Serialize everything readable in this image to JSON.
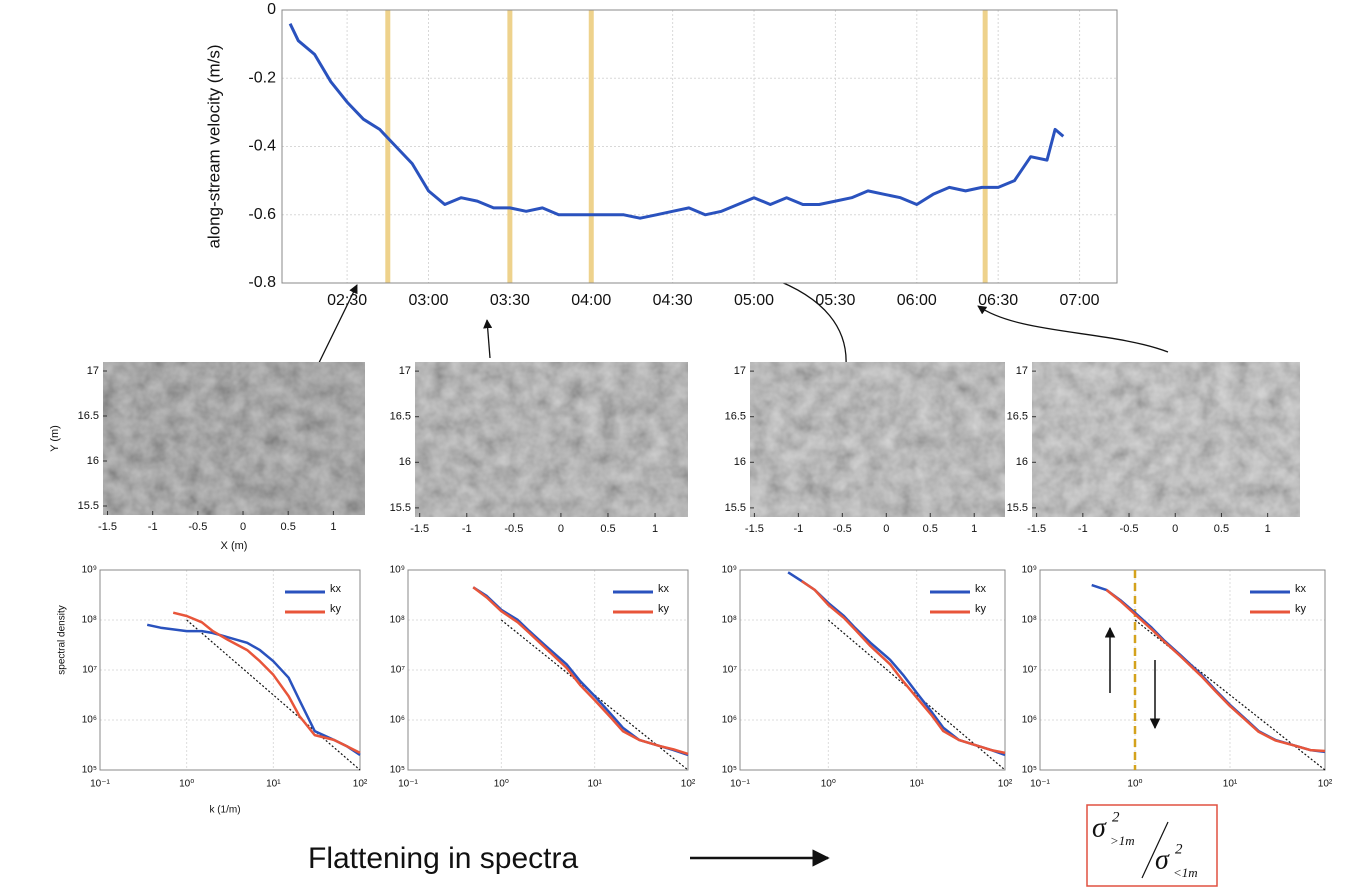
{
  "chart_data": [
    {
      "type": "line",
      "ylabel": "along-stream velocity (m/s)",
      "x": [
        2.15,
        2.2,
        2.3,
        2.4,
        2.5,
        2.6,
        2.7,
        2.8,
        2.9,
        3.0,
        3.1,
        3.2,
        3.3,
        3.4,
        3.5,
        3.6,
        3.7,
        3.8,
        3.9,
        4.0,
        4.1,
        4.2,
        4.3,
        4.4,
        4.5,
        4.6,
        4.7,
        4.8,
        4.9,
        5.0,
        5.1,
        5.2,
        5.3,
        5.4,
        5.5,
        5.6,
        5.7,
        5.8,
        5.9,
        6.0,
        6.1,
        6.2,
        6.3,
        6.4,
        6.5,
        6.6,
        6.7,
        6.8,
        6.85,
        6.9
      ],
      "series": [
        {
          "color": "#2a52be",
          "values": [
            -0.04,
            -0.09,
            -0.13,
            -0.21,
            -0.27,
            -0.32,
            -0.35,
            -0.4,
            -0.45,
            -0.53,
            -0.57,
            -0.55,
            -0.56,
            -0.58,
            -0.58,
            -0.59,
            -0.58,
            -0.6,
            -0.6,
            -0.6,
            -0.6,
            -0.6,
            -0.61,
            -0.6,
            -0.59,
            -0.58,
            -0.6,
            -0.59,
            -0.57,
            -0.55,
            -0.57,
            -0.55,
            -0.57,
            -0.57,
            -0.56,
            -0.55,
            -0.53,
            -0.54,
            -0.55,
            -0.57,
            -0.54,
            -0.52,
            -0.53,
            -0.52,
            -0.52,
            -0.5,
            -0.43,
            -0.44,
            -0.35,
            -0.37
          ]
        }
      ],
      "xlim": [
        2.1,
        7.23
      ],
      "xticks": [
        {
          "value": 2.5,
          "label": "02:30"
        },
        {
          "value": 3.0,
          "label": "03:00"
        },
        {
          "value": 3.5,
          "label": "03:30"
        },
        {
          "value": 4.0,
          "label": "04:00"
        },
        {
          "value": 4.5,
          "label": "04:30"
        },
        {
          "value": 5.0,
          "label": "05:00"
        },
        {
          "value": 5.5,
          "label": "05:30"
        },
        {
          "value": 6.0,
          "label": "06:00"
        },
        {
          "value": 6.5,
          "label": "06:30"
        },
        {
          "value": 7.0,
          "label": "07:00"
        }
      ],
      "ylim": [
        -0.8,
        0
      ],
      "yticks": [
        -0.8,
        -0.6,
        -0.4,
        -0.2,
        0
      ],
      "grid": true,
      "highlight_x": [
        2.75,
        3.5,
        4.0,
        6.42
      ],
      "highlight_color": "#eed28c"
    },
    {
      "type": "image",
      "xlabel": "X (m)",
      "ylabel": "Y (m)",
      "xlim": [
        -1.55,
        1.35
      ],
      "ylim": [
        15.4,
        17.1
      ],
      "xticks": [
        -1.5,
        -1,
        -0.5,
        0,
        0.5,
        1
      ],
      "yticks": [
        15.5,
        16,
        16.5,
        17
      ],
      "tone": "#8c8c8c"
    },
    {
      "type": "image",
      "xlim": [
        -1.55,
        1.35
      ],
      "ylim": [
        15.4,
        17.1
      ],
      "xticks": [
        -1.5,
        -1,
        -0.5,
        0,
        0.5,
        1
      ],
      "yticks": [
        15.5,
        16,
        16.5,
        17
      ],
      "tone": "#a8a8a8"
    },
    {
      "type": "image",
      "xlim": [
        -1.55,
        1.35
      ],
      "ylim": [
        15.4,
        17.1
      ],
      "xticks": [
        -1.5,
        -1,
        -0.5,
        0,
        0.5,
        1
      ],
      "yticks": [
        15.5,
        16,
        16.5,
        17
      ],
      "tone": "#b4b4b4"
    },
    {
      "type": "image",
      "xlim": [
        -1.55,
        1.35
      ],
      "ylim": [
        15.4,
        17.1
      ],
      "xticks": [
        -1.5,
        -1,
        -0.5,
        0,
        0.5,
        1
      ],
      "yticks": [
        15.5,
        16,
        16.5,
        17
      ],
      "tone": "#bdbdbd"
    },
    {
      "type": "loglog",
      "ylabel": "spectral density",
      "xlabel": "k (1/m)",
      "x": [
        0.35,
        0.5,
        0.7,
        1,
        1.5,
        2,
        3,
        5,
        7,
        10,
        15,
        20,
        30,
        50,
        70,
        100
      ],
      "series": [
        {
          "name": "kx",
          "color": "#2a52be",
          "values": [
            80000000,
            70000000,
            65000000,
            60000000,
            60000000,
            55000000,
            45000000,
            35000000,
            25000000,
            15000000,
            7000000,
            2500000,
            600000,
            400000,
            300000,
            200000
          ]
        },
        {
          "name": "ky",
          "color": "#e8553a",
          "values": [
            null,
            null,
            140000000,
            120000000,
            90000000,
            60000000,
            40000000,
            25000000,
            15000000,
            8000000,
            3000000,
            1200000,
            500000,
            400000,
            300000,
            220000
          ]
        }
      ],
      "reference": {
        "x": [
          1,
          100
        ],
        "values": [
          100000000,
          100000
        ]
      },
      "xlim": [
        0.1,
        100
      ],
      "ylim": [
        100000,
        1000000000
      ],
      "xticks": [
        {
          "value": 0.1,
          "label": "10⁻¹"
        },
        {
          "value": 1,
          "label": "10⁰"
        },
        {
          "value": 10,
          "label": "10¹"
        },
        {
          "value": 100,
          "label": "10²"
        }
      ],
      "yticks": [
        {
          "value": 100000,
          "label": "10⁵"
        },
        {
          "value": 1000000,
          "label": "10⁶"
        },
        {
          "value": 10000000,
          "label": "10⁷"
        },
        {
          "value": 100000000,
          "label": "10⁸"
        },
        {
          "value": 1000000000,
          "label": "10⁹"
        }
      ],
      "log_scale": true,
      "grid": true,
      "legend": "upper right"
    },
    {
      "type": "loglog",
      "x": [
        0.35,
        0.5,
        0.7,
        1,
        1.5,
        2,
        3,
        5,
        7,
        10,
        15,
        20,
        30,
        50,
        70,
        100
      ],
      "series": [
        {
          "name": "kx",
          "color": "#2a52be",
          "values": [
            null,
            450000000,
            300000000,
            160000000,
            100000000,
            60000000,
            30000000,
            13000000,
            6000000,
            3000000,
            1300000,
            700000,
            400000,
            300000,
            250000,
            200000
          ]
        },
        {
          "name": "ky",
          "color": "#e8553a",
          "values": [
            null,
            450000000,
            280000000,
            150000000,
            90000000,
            55000000,
            27000000,
            11000000,
            5000000,
            2500000,
            1100000,
            600000,
            400000,
            300000,
            260000,
            210000
          ]
        }
      ],
      "reference": {
        "x": [
          1,
          100
        ],
        "values": [
          100000000,
          100000
        ]
      },
      "xlim": [
        0.1,
        100
      ],
      "ylim": [
        100000,
        1000000000
      ],
      "xticks": [
        {
          "value": 0.1,
          "label": "10⁻¹"
        },
        {
          "value": 1,
          "label": "10⁰"
        },
        {
          "value": 10,
          "label": "10¹"
        },
        {
          "value": 100,
          "label": "10²"
        }
      ],
      "yticks": [
        {
          "value": 100000,
          "label": "10⁵"
        },
        {
          "value": 1000000,
          "label": "10⁶"
        },
        {
          "value": 10000000,
          "label": "10⁷"
        },
        {
          "value": 100000000,
          "label": "10⁸"
        },
        {
          "value": 1000000000,
          "label": "10⁹"
        }
      ],
      "log_scale": true,
      "grid": true,
      "legend": "upper right"
    },
    {
      "type": "loglog",
      "x": [
        0.35,
        0.5,
        0.7,
        1,
        1.5,
        2,
        3,
        5,
        7,
        10,
        15,
        20,
        30,
        50,
        70,
        100
      ],
      "series": [
        {
          "name": "kx",
          "color": "#2a52be",
          "values": [
            900000000,
            600000000,
            400000000,
            220000000,
            120000000,
            70000000,
            35000000,
            16000000,
            8000000,
            3500000,
            1400000,
            700000,
            400000,
            300000,
            250000,
            200000
          ]
        },
        {
          "name": "ky",
          "color": "#e8553a",
          "values": [
            null,
            600000000,
            400000000,
            200000000,
            110000000,
            65000000,
            30000000,
            13000000,
            6000000,
            2800000,
            1200000,
            600000,
            400000,
            300000,
            250000,
            220000
          ]
        }
      ],
      "reference": {
        "x": [
          1,
          100
        ],
        "values": [
          100000000,
          100000
        ]
      },
      "xlim": [
        0.1,
        100
      ],
      "ylim": [
        100000,
        1000000000
      ],
      "xticks": [
        {
          "value": 0.1,
          "label": "10⁻¹"
        },
        {
          "value": 1,
          "label": "10⁰"
        },
        {
          "value": 10,
          "label": "10¹"
        },
        {
          "value": 100,
          "label": "10²"
        }
      ],
      "yticks": [
        {
          "value": 100000,
          "label": "10⁵"
        },
        {
          "value": 1000000,
          "label": "10⁶"
        },
        {
          "value": 10000000,
          "label": "10⁷"
        },
        {
          "value": 100000000,
          "label": "10⁸"
        },
        {
          "value": 1000000000,
          "label": "10⁹"
        }
      ],
      "log_scale": true,
      "grid": true,
      "legend": "upper right"
    },
    {
      "type": "loglog",
      "x": [
        0.35,
        0.5,
        0.7,
        1,
        1.5,
        2,
        3,
        5,
        7,
        10,
        15,
        20,
        30,
        50,
        70,
        100
      ],
      "series": [
        {
          "name": "kx",
          "color": "#2a52be",
          "values": [
            500000000,
            400000000,
            250000000,
            140000000,
            70000000,
            40000000,
            20000000,
            8000000,
            4000000,
            2000000,
            1000000,
            600000,
            400000,
            300000,
            250000,
            230000
          ]
        },
        {
          "name": "ky",
          "color": "#e8553a",
          "values": [
            null,
            400000000,
            240000000,
            130000000,
            65000000,
            38000000,
            19000000,
            7500000,
            3800000,
            1900000,
            950000,
            580000,
            390000,
            300000,
            250000,
            240000
          ]
        }
      ],
      "reference": {
        "x": [
          1,
          100
        ],
        "values": [
          100000000,
          100000
        ]
      },
      "xlim": [
        0.1,
        100
      ],
      "ylim": [
        100000,
        1000000000
      ],
      "xticks": [
        {
          "value": 0.1,
          "label": "10⁻¹"
        },
        {
          "value": 1,
          "label": "10⁰"
        },
        {
          "value": 10,
          "label": "10¹"
        },
        {
          "value": 100,
          "label": "10²"
        }
      ],
      "yticks": [
        {
          "value": 100000,
          "label": "10⁵"
        },
        {
          "value": 1000000,
          "label": "10⁶"
        },
        {
          "value": 10000000,
          "label": "10⁷"
        },
        {
          "value": 100000000,
          "label": "10⁸"
        },
        {
          "value": 1000000000,
          "label": "10⁹"
        }
      ],
      "log_scale": true,
      "grid": true,
      "legend": "upper right",
      "vline_x": 1,
      "vline_color": "#d4a21c"
    }
  ],
  "caption": "Flattening in spectra",
  "formula": {
    "symbol": "σ",
    "power": "2",
    "upper_sub": ">1m",
    "lower_sub": "<1m"
  }
}
